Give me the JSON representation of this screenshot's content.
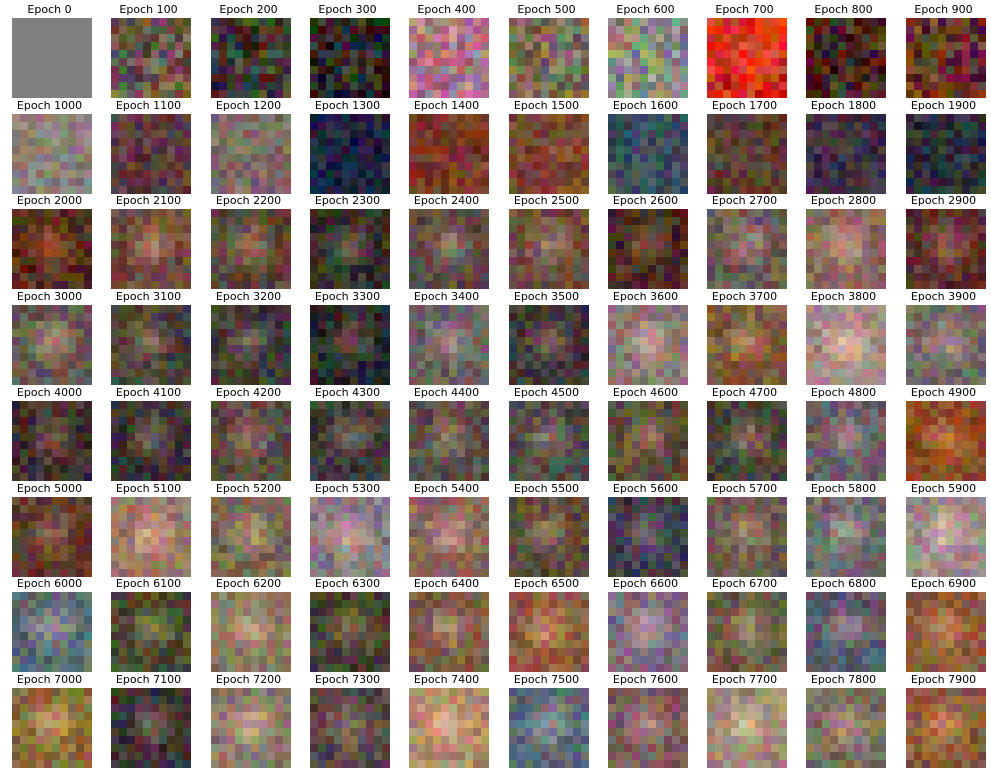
{
  "figure": {
    "rows": 8,
    "cols": 10,
    "partial_row_visible": true,
    "panels": [
      {
        "title": "Epoch 0",
        "tone": "#7f7f7f"
      },
      {
        "title": "Epoch 100",
        "tone": "#6a5a45"
      },
      {
        "title": "Epoch 200",
        "tone": "#3d3b2f"
      },
      {
        "title": "Epoch 300",
        "tone": "#2a2426"
      },
      {
        "title": "Epoch 400",
        "tone": "#b37a88"
      },
      {
        "title": "Epoch 500",
        "tone": "#7a6a55"
      },
      {
        "title": "Epoch 600",
        "tone": "#8a8a80"
      },
      {
        "title": "Epoch 700",
        "tone": "#d2321f"
      },
      {
        "title": "Epoch 800",
        "tone": "#4a2a1c"
      },
      {
        "title": "Epoch 900",
        "tone": "#6a3322"
      },
      {
        "title": "Epoch 1000",
        "tone": "#8c807a"
      },
      {
        "title": "Epoch 1100",
        "tone": "#5a3a3f"
      },
      {
        "title": "Epoch 1200",
        "tone": "#7f6a66"
      },
      {
        "title": "Epoch 1300",
        "tone": "#1e2340"
      },
      {
        "title": "Epoch 1400",
        "tone": "#7a3a26"
      },
      {
        "title": "Epoch 1500",
        "tone": "#7b4433"
      },
      {
        "title": "Epoch 1600",
        "tone": "#3a4e5a"
      },
      {
        "title": "Epoch 1700",
        "tone": "#5a3d33"
      },
      {
        "title": "Epoch 1800",
        "tone": "#3e3044"
      },
      {
        "title": "Epoch 1900",
        "tone": "#2c2e3a"
      },
      {
        "title": "Epoch 2000",
        "tone": "#5a2d1a"
      },
      {
        "title": "Epoch 2100",
        "tone": "#6e4b3c"
      },
      {
        "title": "Epoch 2200",
        "tone": "#5c4637"
      },
      {
        "title": "Epoch 2300",
        "tone": "#33302a"
      },
      {
        "title": "Epoch 2400",
        "tone": "#5a4a44"
      },
      {
        "title": "Epoch 2500",
        "tone": "#6a4a3c"
      },
      {
        "title": "Epoch 2600",
        "tone": "#4a2a20"
      },
      {
        "title": "Epoch 2700",
        "tone": "#6a5a55"
      },
      {
        "title": "Epoch 2800",
        "tone": "#8a6a5c"
      },
      {
        "title": "Epoch 2900",
        "tone": "#5a302a"
      },
      {
        "title": "Epoch 3000",
        "tone": "#6a5a50"
      },
      {
        "title": "Epoch 3100",
        "tone": "#4a3f3a"
      },
      {
        "title": "Epoch 3200",
        "tone": "#3f3a35"
      },
      {
        "title": "Epoch 3300",
        "tone": "#2e2a2a"
      },
      {
        "title": "Epoch 3400",
        "tone": "#6a6060"
      },
      {
        "title": "Epoch 3500",
        "tone": "#3c3636"
      },
      {
        "title": "Epoch 3600",
        "tone": "#8a7a74"
      },
      {
        "title": "Epoch 3700",
        "tone": "#7a5a3a"
      },
      {
        "title": "Epoch 3800",
        "tone": "#a88a84"
      },
      {
        "title": "Epoch 3900",
        "tone": "#6e6a66"
      },
      {
        "title": "Epoch 4000",
        "tone": "#3e302c"
      },
      {
        "title": "Epoch 4100",
        "tone": "#3a3433"
      },
      {
        "title": "Epoch 4200",
        "tone": "#5a4a40"
      },
      {
        "title": "Epoch 4300",
        "tone": "#3e3a3a"
      },
      {
        "title": "Epoch 4400",
        "tone": "#5a4c48"
      },
      {
        "title": "Epoch 4500",
        "tone": "#4c4a48"
      },
      {
        "title": "Epoch 4600",
        "tone": "#5a4c38"
      },
      {
        "title": "Epoch 4700",
        "tone": "#4a4238"
      },
      {
        "title": "Epoch 4800",
        "tone": "#6a6066"
      },
      {
        "title": "Epoch 4900",
        "tone": "#8a4a22"
      },
      {
        "title": "Epoch 5000",
        "tone": "#5a3a2a"
      },
      {
        "title": "Epoch 5100",
        "tone": "#9a7a64"
      },
      {
        "title": "Epoch 5200",
        "tone": "#7a6a50"
      },
      {
        "title": "Epoch 5300",
        "tone": "#8a7a80"
      },
      {
        "title": "Epoch 5400",
        "tone": "#8a6a5a"
      },
      {
        "title": "Epoch 5500",
        "tone": "#5a4a38"
      },
      {
        "title": "Epoch 5600",
        "tone": "#3e3a4a"
      },
      {
        "title": "Epoch 5700",
        "tone": "#6a5a50"
      },
      {
        "title": "Epoch 5800",
        "tone": "#6a6a6a"
      },
      {
        "title": "Epoch 5900",
        "tone": "#9a8a88"
      },
      {
        "title": "Epoch 6000",
        "tone": "#5a6a74"
      },
      {
        "title": "Epoch 6100",
        "tone": "#4a4a30"
      },
      {
        "title": "Epoch 6200",
        "tone": "#8a7a60"
      },
      {
        "title": "Epoch 6300",
        "tone": "#4a4030"
      },
      {
        "title": "Epoch 6400",
        "tone": "#7a5a48"
      },
      {
        "title": "Epoch 6500",
        "tone": "#8a5a44"
      },
      {
        "title": "Epoch 6600",
        "tone": "#7a6a7a"
      },
      {
        "title": "Epoch 6700",
        "tone": "#6a5a44"
      },
      {
        "title": "Epoch 6800",
        "tone": "#5a5a66"
      },
      {
        "title": "Epoch 6900",
        "tone": "#8a5a3a"
      },
      {
        "title": "Epoch 7000",
        "tone": "#8a6a3a"
      },
      {
        "title": "Epoch 7100",
        "tone": "#3e3434"
      },
      {
        "title": "Epoch 7200",
        "tone": "#8a7a6a"
      },
      {
        "title": "Epoch 7300",
        "tone": "#5a4a44"
      },
      {
        "title": "Epoch 7400",
        "tone": "#b08a6a"
      },
      {
        "title": "Epoch 7500",
        "tone": "#5a6a74"
      },
      {
        "title": "Epoch 7600",
        "tone": "#7a5a5a"
      },
      {
        "title": "Epoch 7700",
        "tone": "#a08a74"
      },
      {
        "title": "Epoch 7800",
        "tone": "#7a6a60"
      },
      {
        "title": "Epoch 7900",
        "tone": "#8a5a3a"
      }
    ]
  }
}
